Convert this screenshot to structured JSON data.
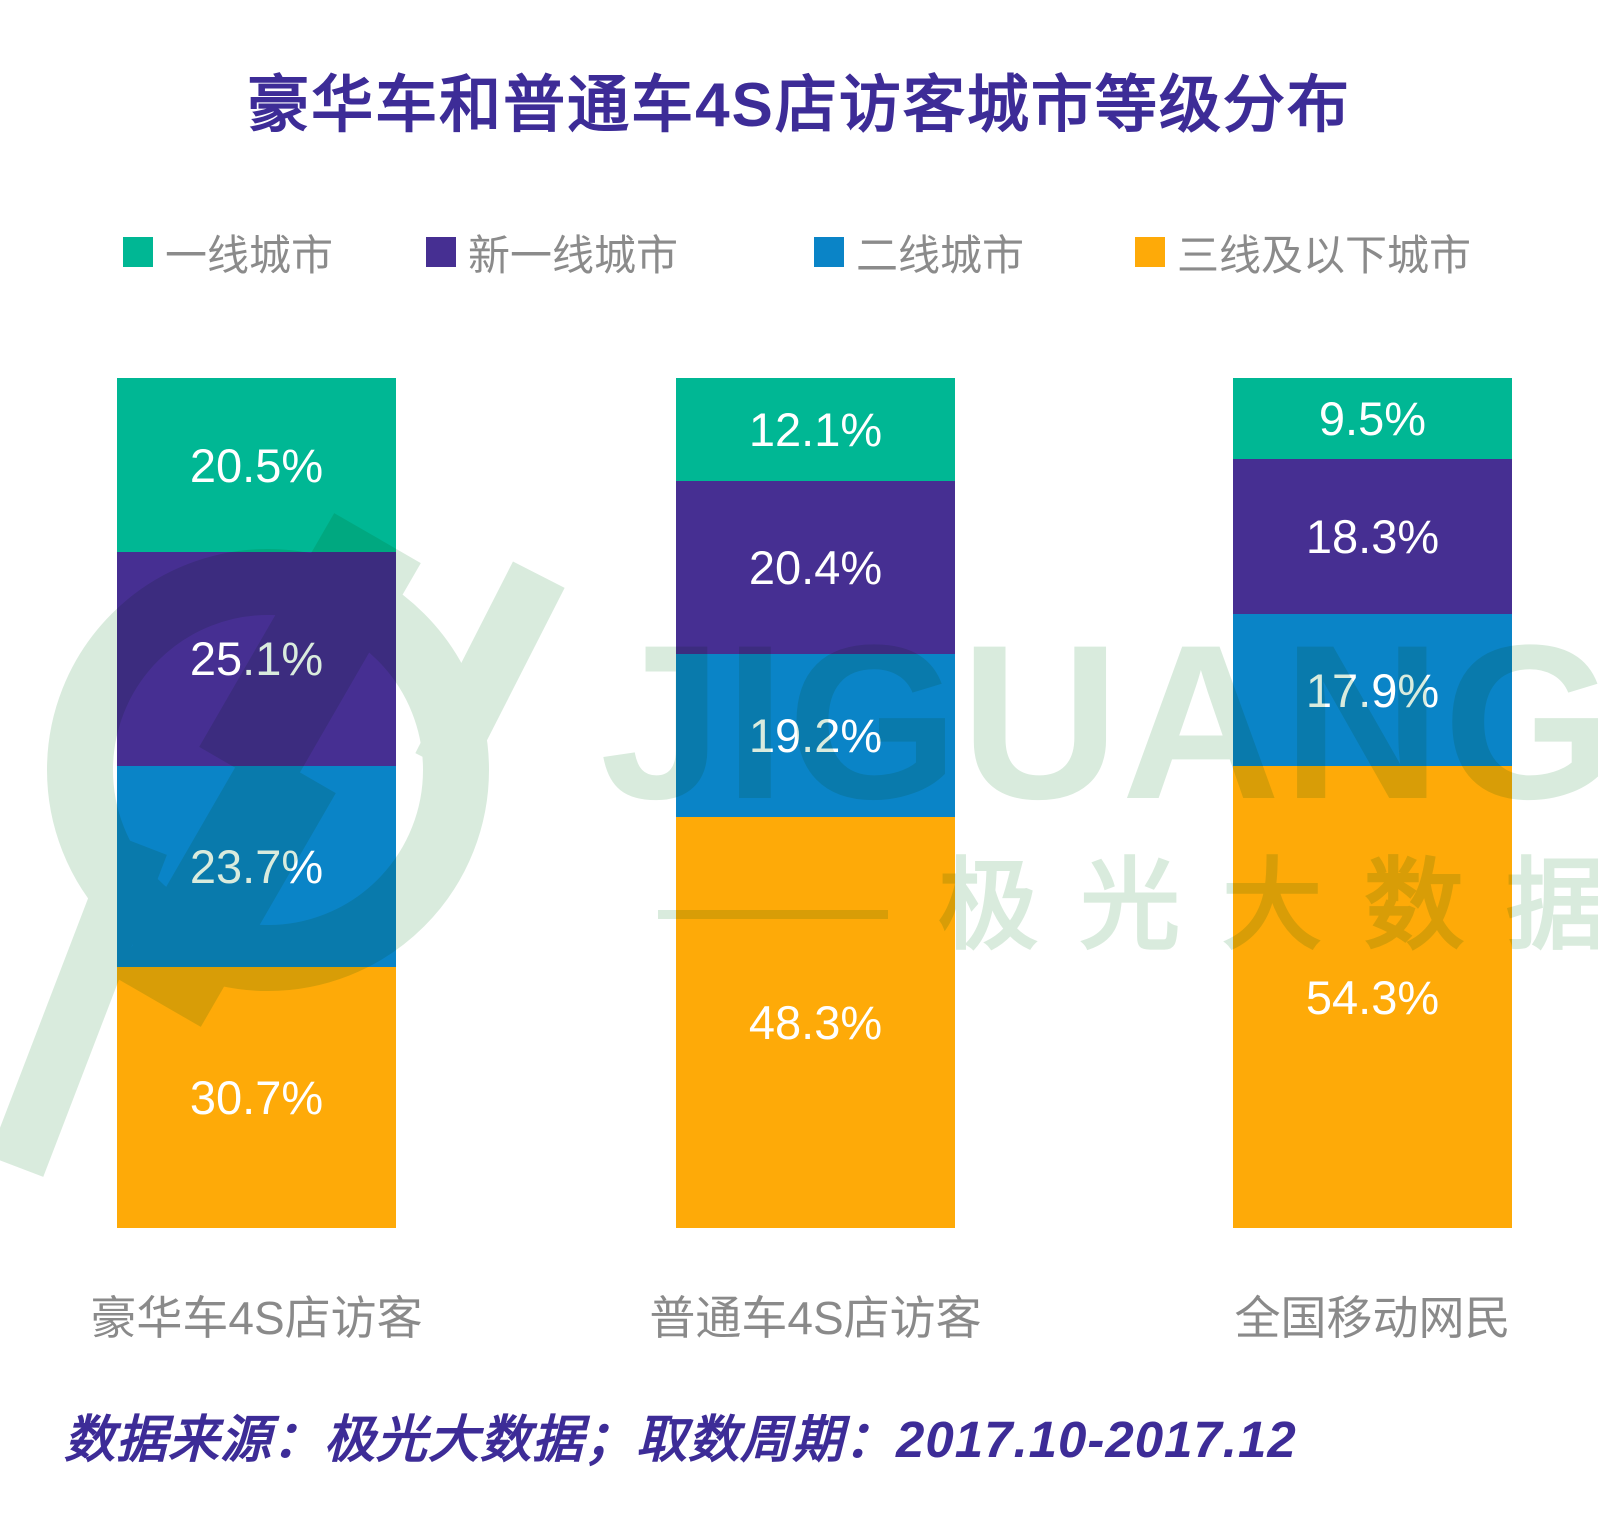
{
  "title": "豪华车和普通车4S店访客城市等级分布",
  "colors": {
    "title_text": "#3D2C97",
    "footer_text": "#3D2C97",
    "legend_text": "#8B8B8B",
    "category_label": "#8A8A8A",
    "segment_value": "#FFFFFF",
    "background": "#FFFFFF"
  },
  "chart_data": {
    "type": "bar",
    "stacked": true,
    "title": "豪华车和普通车4S店访客城市等级分布",
    "categories": [
      "豪华车4S店访客",
      "普通车4S店访客",
      "全国移动网民"
    ],
    "series": [
      {
        "name": "一线城市",
        "color": "#00B794",
        "values": [
          20.5,
          12.1,
          9.5
        ]
      },
      {
        "name": "新一线城市",
        "color": "#462F92",
        "values": [
          25.1,
          20.4,
          18.3
        ]
      },
      {
        "name": "二线城市",
        "color": "#0A84C7",
        "values": [
          23.7,
          19.2,
          17.9
        ]
      },
      {
        "name": "三线及以下城市",
        "color": "#FEAA08",
        "values": [
          30.7,
          48.3,
          54.3
        ]
      }
    ],
    "value_suffix": "%",
    "ylim": [
      0,
      100
    ],
    "grid": false,
    "legend_position": "top",
    "data_labels": "inside-center"
  },
  "watermark": {
    "brand_latin": "JIGUANG",
    "brand_cn": "极光大数据",
    "color": "#D9EBDD"
  },
  "footer": {
    "text": "数据来源：极光大数据；取数周期：2017.10-2017.12"
  }
}
